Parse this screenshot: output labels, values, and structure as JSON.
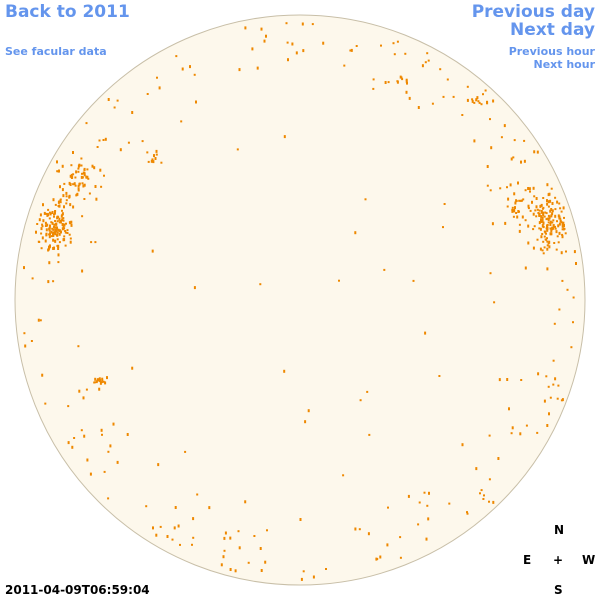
{
  "nav": {
    "back_label": "Back to 2011",
    "facular_label": "See facular data",
    "prev_day_label": "Previous day",
    "next_day_label": "Next day",
    "prev_hour_label": "Previous hour",
    "next_hour_label": "Next hour"
  },
  "compass": {
    "north": "N",
    "east": "E",
    "center": "+",
    "west": "W",
    "south": "S"
  },
  "timestamp": "2011-04-09T06:59:04",
  "colors": {
    "link": "#6495ed",
    "disk_fill": "#fdf8ec",
    "disk_stroke": "#c8bfa8",
    "features": "#ee8800"
  }
}
